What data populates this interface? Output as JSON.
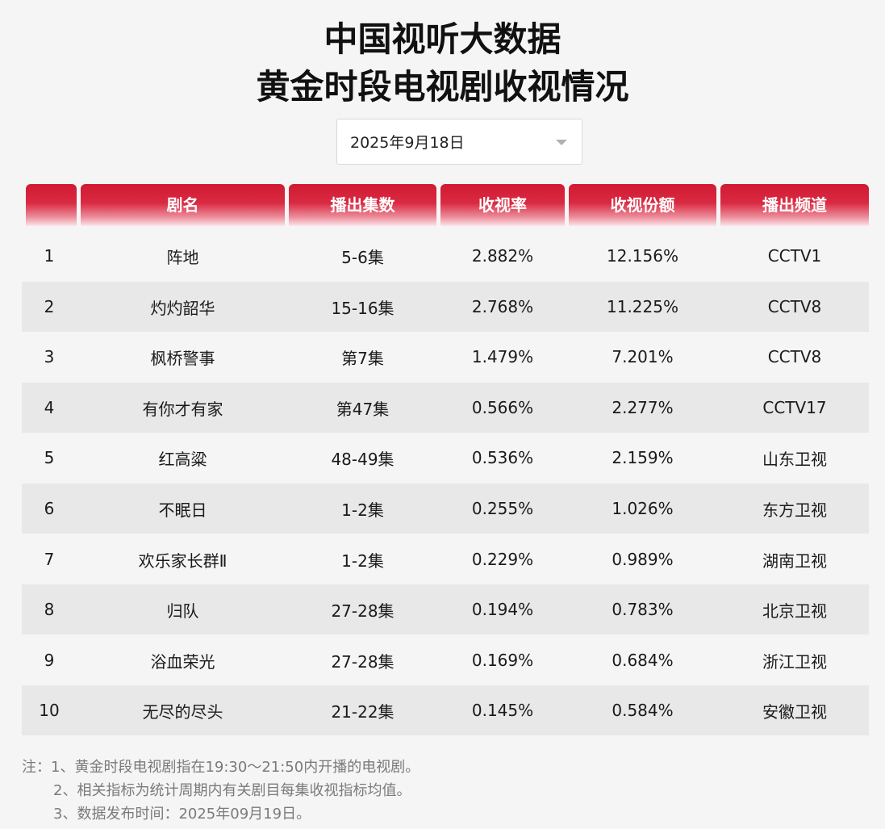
{
  "header": {
    "title_line1": "中国视听大数据",
    "title_line2": "黄金时段电视剧收视情况"
  },
  "date_select": {
    "value": "2025年9月18日"
  },
  "table": {
    "columns": [
      "",
      "剧名",
      "播出集数",
      "收视率",
      "收视份额",
      "播出频道"
    ],
    "rows": [
      [
        "1",
        "阵地",
        "5-6集",
        "2.882%",
        "12.156%",
        "CCTV1"
      ],
      [
        "2",
        "灼灼韶华",
        "15-16集",
        "2.768%",
        "11.225%",
        "CCTV8"
      ],
      [
        "3",
        "枫桥警事",
        "第7集",
        "1.479%",
        "7.201%",
        "CCTV8"
      ],
      [
        "4",
        "有你才有家",
        "第47集",
        "0.566%",
        "2.277%",
        "CCTV17"
      ],
      [
        "5",
        "红高粱",
        "48-49集",
        "0.536%",
        "2.159%",
        "山东卫视"
      ],
      [
        "6",
        "不眠日",
        "1-2集",
        "0.255%",
        "1.026%",
        "东方卫视"
      ],
      [
        "7",
        "欢乐家长群Ⅱ",
        "1-2集",
        "0.229%",
        "0.989%",
        "湖南卫视"
      ],
      [
        "8",
        "归队",
        "27-28集",
        "0.194%",
        "0.783%",
        "北京卫视"
      ],
      [
        "9",
        "浴血荣光",
        "27-28集",
        "0.169%",
        "0.684%",
        "浙江卫视"
      ],
      [
        "10",
        "无尽的尽头",
        "21-22集",
        "0.145%",
        "0.584%",
        "安徽卫视"
      ]
    ]
  },
  "notes": [
    "注：1、黄金时段电视剧指在19:30～21:50内开播的电视剧。",
    "2、相关指标为统计周期内有关剧目每集收视指标均值。",
    "3、数据发布时间：2025年09月19日。"
  ],
  "colors": {
    "header_red": "#d01a32",
    "alt_row": "#e8e8e8",
    "background": "#f5f5f5"
  }
}
